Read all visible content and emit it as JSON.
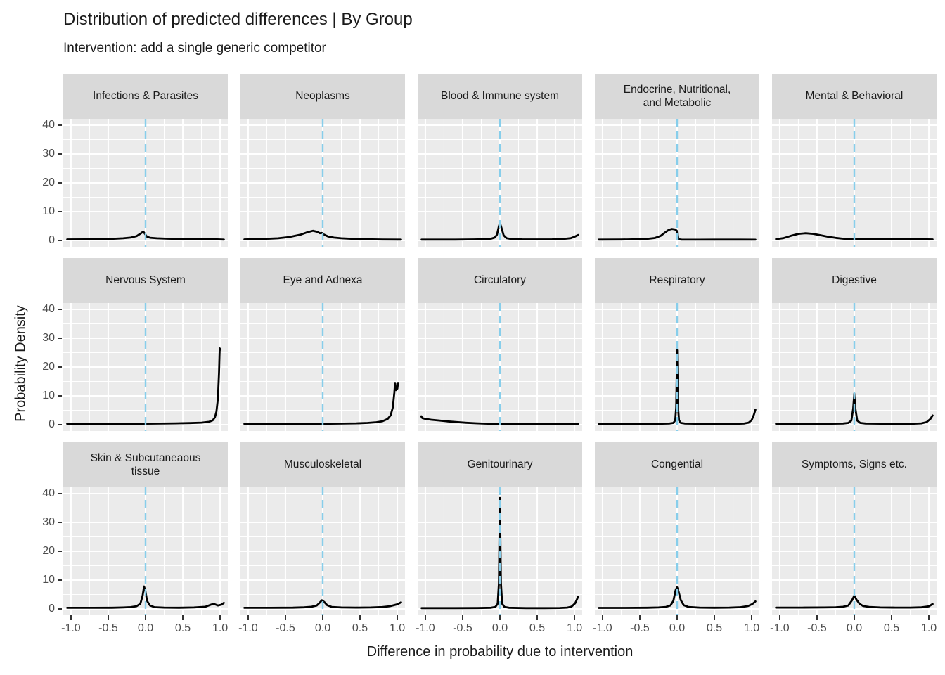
{
  "header": {
    "title": "Distribution of predicted differences | By Group",
    "subtitle": "Intervention: add a single generic competitor"
  },
  "axes": {
    "x": {
      "title": "Difference in probability due to intervention",
      "ticks": [
        -1.0,
        -0.5,
        0.0,
        0.5,
        1.0
      ],
      "tick_labels": [
        "-1.0",
        "-0.5",
        "0.0",
        "0.5",
        "1.0"
      ],
      "minor": [
        -0.75,
        -0.25,
        0.25,
        0.75
      ],
      "range": [
        -1.103,
        1.103
      ]
    },
    "y": {
      "title": "Probability Density",
      "ticks": [
        0,
        10,
        20,
        30,
        40
      ],
      "tick_labels": [
        "0",
        "10",
        "20",
        "30",
        "40"
      ],
      "minor": [
        5,
        15,
        25,
        35
      ],
      "range": [
        -2.2,
        42.2
      ]
    }
  },
  "style": {
    "panel_bg": "#ebebeb",
    "strip_bg": "#d9d9d9",
    "grid_color": "#ffffff",
    "density_line_color": "#000000",
    "reference_line_color": "#87ceeb",
    "tick_label_color": "#4d4d4d",
    "tick_mark_color": "#333333",
    "text_color": "#1a1a1a"
  },
  "chart_data": {
    "type": "line",
    "subtype": "faceted-density",
    "title": "Distribution of predicted differences | By Group",
    "subtitle": "Intervention: add a single generic competitor",
    "xlabel": "Difference in probability due to intervention",
    "ylabel": "Probability Density",
    "xlim": [
      -1.0,
      1.0
    ],
    "ylim": [
      0,
      40
    ],
    "facet_grid": [
      3,
      5
    ],
    "grid": "on",
    "legend": "none",
    "reference_line": {
      "x": 0,
      "style": "dashed",
      "color": "#87ceeb"
    },
    "panels": [
      {
        "name": "Infections & Parasites",
        "points": [
          [
            -1.05,
            0.35
          ],
          [
            -0.8,
            0.38
          ],
          [
            -0.6,
            0.45
          ],
          [
            -0.45,
            0.55
          ],
          [
            -0.3,
            0.75
          ],
          [
            -0.2,
            1.0
          ],
          [
            -0.12,
            1.5
          ],
          [
            -0.06,
            2.5
          ],
          [
            -0.03,
            3.1
          ],
          [
            0.0,
            2.0
          ],
          [
            0.02,
            1.3
          ],
          [
            0.06,
            0.95
          ],
          [
            0.15,
            0.75
          ],
          [
            0.3,
            0.6
          ],
          [
            0.5,
            0.52
          ],
          [
            0.7,
            0.48
          ],
          [
            0.9,
            0.45
          ],
          [
            1.05,
            0.3
          ]
        ]
      },
      {
        "name": "Neoplasms",
        "points": [
          [
            -1.05,
            0.35
          ],
          [
            -0.8,
            0.5
          ],
          [
            -0.6,
            0.75
          ],
          [
            -0.45,
            1.2
          ],
          [
            -0.3,
            2.0
          ],
          [
            -0.2,
            2.9
          ],
          [
            -0.13,
            3.35
          ],
          [
            -0.07,
            3.0
          ],
          [
            -0.04,
            2.5
          ],
          [
            -0.01,
            2.6
          ],
          [
            0.02,
            2.0
          ],
          [
            0.07,
            1.4
          ],
          [
            0.15,
            1.0
          ],
          [
            0.25,
            0.75
          ],
          [
            0.4,
            0.55
          ],
          [
            0.6,
            0.4
          ],
          [
            0.8,
            0.32
          ],
          [
            1.05,
            0.3
          ]
        ]
      },
      {
        "name": "Blood & Immune system",
        "points": [
          [
            -1.05,
            0.3
          ],
          [
            -0.6,
            0.3
          ],
          [
            -0.35,
            0.35
          ],
          [
            -0.2,
            0.45
          ],
          [
            -0.12,
            0.6
          ],
          [
            -0.07,
            1.0
          ],
          [
            -0.04,
            2.0
          ],
          [
            -0.015,
            4.8
          ],
          [
            0.0,
            6.1
          ],
          [
            0.02,
            4.5
          ],
          [
            0.05,
            1.8
          ],
          [
            0.09,
            0.8
          ],
          [
            0.15,
            0.5
          ],
          [
            0.3,
            0.38
          ],
          [
            0.5,
            0.35
          ],
          [
            0.7,
            0.38
          ],
          [
            0.85,
            0.5
          ],
          [
            0.95,
            0.8
          ],
          [
            1.0,
            1.3
          ],
          [
            1.05,
            1.9
          ]
        ]
      },
      {
        "name": "Endocrine, Nutritional,\nand Metabolic",
        "points": [
          [
            -1.05,
            0.3
          ],
          [
            -0.75,
            0.32
          ],
          [
            -0.55,
            0.4
          ],
          [
            -0.4,
            0.55
          ],
          [
            -0.3,
            0.85
          ],
          [
            -0.22,
            1.6
          ],
          [
            -0.16,
            2.8
          ],
          [
            -0.11,
            3.7
          ],
          [
            -0.07,
            4.0
          ],
          [
            -0.03,
            3.85
          ],
          [
            -0.005,
            3.4
          ],
          [
            0.005,
            1.2
          ],
          [
            0.02,
            0.4
          ],
          [
            0.06,
            0.28
          ],
          [
            0.3,
            0.26
          ],
          [
            0.6,
            0.28
          ],
          [
            0.85,
            0.3
          ],
          [
            1.05,
            0.26
          ]
        ]
      },
      {
        "name": "Mental & Behavioral",
        "points": [
          [
            -1.05,
            0.45
          ],
          [
            -0.95,
            0.8
          ],
          [
            -0.85,
            1.6
          ],
          [
            -0.75,
            2.3
          ],
          [
            -0.65,
            2.5
          ],
          [
            -0.55,
            2.3
          ],
          [
            -0.45,
            1.8
          ],
          [
            -0.35,
            1.3
          ],
          [
            -0.25,
            0.9
          ],
          [
            -0.15,
            0.6
          ],
          [
            -0.05,
            0.42
          ],
          [
            0.1,
            0.4
          ],
          [
            0.3,
            0.48
          ],
          [
            0.5,
            0.55
          ],
          [
            0.7,
            0.5
          ],
          [
            0.9,
            0.42
          ],
          [
            1.05,
            0.35
          ]
        ]
      },
      {
        "name": "Nervous System",
        "points": [
          [
            -1.05,
            0.28
          ],
          [
            -0.6,
            0.28
          ],
          [
            -0.2,
            0.3
          ],
          [
            0.1,
            0.35
          ],
          [
            0.4,
            0.45
          ],
          [
            0.6,
            0.55
          ],
          [
            0.75,
            0.7
          ],
          [
            0.85,
            1.0
          ],
          [
            0.9,
            1.5
          ],
          [
            0.93,
            2.5
          ],
          [
            0.95,
            4.5
          ],
          [
            0.97,
            9.0
          ],
          [
            0.985,
            18.0
          ],
          [
            0.995,
            26.5
          ],
          [
            1.005,
            26.0
          ]
        ]
      },
      {
        "name": "Eye and Adnexa",
        "points": [
          [
            -1.05,
            0.26
          ],
          [
            -0.5,
            0.26
          ],
          [
            -0.1,
            0.3
          ],
          [
            0.2,
            0.35
          ],
          [
            0.45,
            0.45
          ],
          [
            0.6,
            0.6
          ],
          [
            0.72,
            0.85
          ],
          [
            0.8,
            1.2
          ],
          [
            0.87,
            2.0
          ],
          [
            0.91,
            3.2
          ],
          [
            0.94,
            6.0
          ],
          [
            0.96,
            11.0
          ],
          [
            0.97,
            14.5
          ],
          [
            0.985,
            12.0
          ],
          [
            1.0,
            12.5
          ],
          [
            1.01,
            14.5
          ]
        ]
      },
      {
        "name": "Circulatory",
        "points": [
          [
            -1.055,
            2.9
          ],
          [
            -1.04,
            2.3
          ],
          [
            -1.0,
            2.0
          ],
          [
            -0.92,
            1.7
          ],
          [
            -0.82,
            1.45
          ],
          [
            -0.7,
            1.15
          ],
          [
            -0.58,
            0.9
          ],
          [
            -0.45,
            0.65
          ],
          [
            -0.32,
            0.48
          ],
          [
            -0.2,
            0.35
          ],
          [
            -0.08,
            0.26
          ],
          [
            0.1,
            0.2
          ],
          [
            0.4,
            0.17
          ],
          [
            0.7,
            0.17
          ],
          [
            1.05,
            0.2
          ]
        ]
      },
      {
        "name": "Respiratory",
        "points": [
          [
            -1.05,
            0.3
          ],
          [
            -0.6,
            0.3
          ],
          [
            -0.25,
            0.32
          ],
          [
            -0.1,
            0.4
          ],
          [
            -0.05,
            0.6
          ],
          [
            -0.025,
            1.5
          ],
          [
            -0.012,
            6.0
          ],
          [
            0.0,
            25.8
          ],
          [
            0.012,
            6.0
          ],
          [
            0.025,
            1.5
          ],
          [
            0.05,
            0.6
          ],
          [
            0.1,
            0.4
          ],
          [
            0.3,
            0.32
          ],
          [
            0.6,
            0.3
          ],
          [
            0.8,
            0.32
          ],
          [
            0.9,
            0.4
          ],
          [
            0.96,
            0.7
          ],
          [
            1.0,
            1.6
          ],
          [
            1.03,
            3.5
          ],
          [
            1.05,
            5.2
          ]
        ]
      },
      {
        "name": "Digestive",
        "points": [
          [
            -1.05,
            0.3
          ],
          [
            -0.6,
            0.3
          ],
          [
            -0.3,
            0.33
          ],
          [
            -0.15,
            0.4
          ],
          [
            -0.08,
            0.6
          ],
          [
            -0.04,
            1.4
          ],
          [
            -0.015,
            5.5
          ],
          [
            0.0,
            10.8
          ],
          [
            0.015,
            5.5
          ],
          [
            0.04,
            1.4
          ],
          [
            0.08,
            0.6
          ],
          [
            0.15,
            0.42
          ],
          [
            0.35,
            0.33
          ],
          [
            0.6,
            0.3
          ],
          [
            0.8,
            0.33
          ],
          [
            0.9,
            0.45
          ],
          [
            0.97,
            0.9
          ],
          [
            1.02,
            2.0
          ],
          [
            1.05,
            3.2
          ]
        ]
      },
      {
        "name": "Skin & Subcutaneaous\ntissue",
        "points": [
          [
            -1.05,
            0.38
          ],
          [
            -0.7,
            0.38
          ],
          [
            -0.45,
            0.42
          ],
          [
            -0.3,
            0.5
          ],
          [
            -0.2,
            0.62
          ],
          [
            -0.12,
            0.95
          ],
          [
            -0.07,
            1.8
          ],
          [
            -0.04,
            4.5
          ],
          [
            -0.02,
            7.8
          ],
          [
            0.0,
            6.0
          ],
          [
            0.02,
            2.8
          ],
          [
            0.06,
            1.2
          ],
          [
            0.12,
            0.6
          ],
          [
            0.25,
            0.45
          ],
          [
            0.45,
            0.42
          ],
          [
            0.65,
            0.5
          ],
          [
            0.8,
            0.75
          ],
          [
            0.88,
            1.5
          ],
          [
            0.92,
            1.7
          ],
          [
            0.97,
            1.2
          ],
          [
            1.02,
            1.5
          ],
          [
            1.05,
            2.1
          ]
        ]
      },
      {
        "name": "Musculoskeletal",
        "points": [
          [
            -1.05,
            0.38
          ],
          [
            -0.7,
            0.38
          ],
          [
            -0.4,
            0.44
          ],
          [
            -0.25,
            0.55
          ],
          [
            -0.15,
            0.75
          ],
          [
            -0.08,
            1.2
          ],
          [
            -0.04,
            2.2
          ],
          [
            -0.01,
            3.0
          ],
          [
            0.02,
            2.4
          ],
          [
            0.06,
            1.3
          ],
          [
            0.12,
            0.7
          ],
          [
            0.25,
            0.5
          ],
          [
            0.45,
            0.45
          ],
          [
            0.65,
            0.5
          ],
          [
            0.8,
            0.65
          ],
          [
            0.9,
            0.95
          ],
          [
            1.0,
            1.6
          ],
          [
            1.05,
            2.3
          ]
        ]
      },
      {
        "name": "Genitourinary",
        "points": [
          [
            -1.05,
            0.3
          ],
          [
            -0.6,
            0.3
          ],
          [
            -0.3,
            0.32
          ],
          [
            -0.12,
            0.4
          ],
          [
            -0.06,
            0.7
          ],
          [
            -0.03,
            1.8
          ],
          [
            -0.013,
            9.0
          ],
          [
            0.0,
            38.5
          ],
          [
            0.013,
            9.0
          ],
          [
            0.03,
            1.8
          ],
          [
            0.06,
            0.7
          ],
          [
            0.12,
            0.4
          ],
          [
            0.35,
            0.3
          ],
          [
            0.6,
            0.3
          ],
          [
            0.8,
            0.33
          ],
          [
            0.9,
            0.45
          ],
          [
            0.96,
            0.8
          ],
          [
            1.01,
            2.0
          ],
          [
            1.05,
            4.3
          ]
        ]
      },
      {
        "name": "Congential",
        "points": [
          [
            -1.05,
            0.35
          ],
          [
            -0.7,
            0.35
          ],
          [
            -0.4,
            0.4
          ],
          [
            -0.25,
            0.5
          ],
          [
            -0.15,
            0.7
          ],
          [
            -0.09,
            1.2
          ],
          [
            -0.05,
            2.8
          ],
          [
            -0.02,
            6.5
          ],
          [
            0.0,
            7.5
          ],
          [
            0.02,
            6.0
          ],
          [
            0.05,
            3.0
          ],
          [
            0.09,
            1.3
          ],
          [
            0.15,
            0.7
          ],
          [
            0.3,
            0.45
          ],
          [
            0.5,
            0.4
          ],
          [
            0.7,
            0.45
          ],
          [
            0.85,
            0.6
          ],
          [
            0.95,
            1.0
          ],
          [
            1.01,
            1.7
          ],
          [
            1.05,
            2.6
          ]
        ]
      },
      {
        "name": "Symptoms, Signs etc.",
        "points": [
          [
            -1.05,
            0.45
          ],
          [
            -0.7,
            0.45
          ],
          [
            -0.4,
            0.5
          ],
          [
            -0.25,
            0.58
          ],
          [
            -0.15,
            0.75
          ],
          [
            -0.08,
            1.2
          ],
          [
            -0.03,
            3.0
          ],
          [
            0.0,
            4.6
          ],
          [
            0.03,
            3.2
          ],
          [
            0.07,
            1.8
          ],
          [
            0.12,
            1.0
          ],
          [
            0.2,
            0.7
          ],
          [
            0.35,
            0.52
          ],
          [
            0.55,
            0.45
          ],
          [
            0.75,
            0.45
          ],
          [
            0.9,
            0.55
          ],
          [
            1.0,
            0.9
          ],
          [
            1.05,
            1.7
          ]
        ]
      }
    ]
  }
}
